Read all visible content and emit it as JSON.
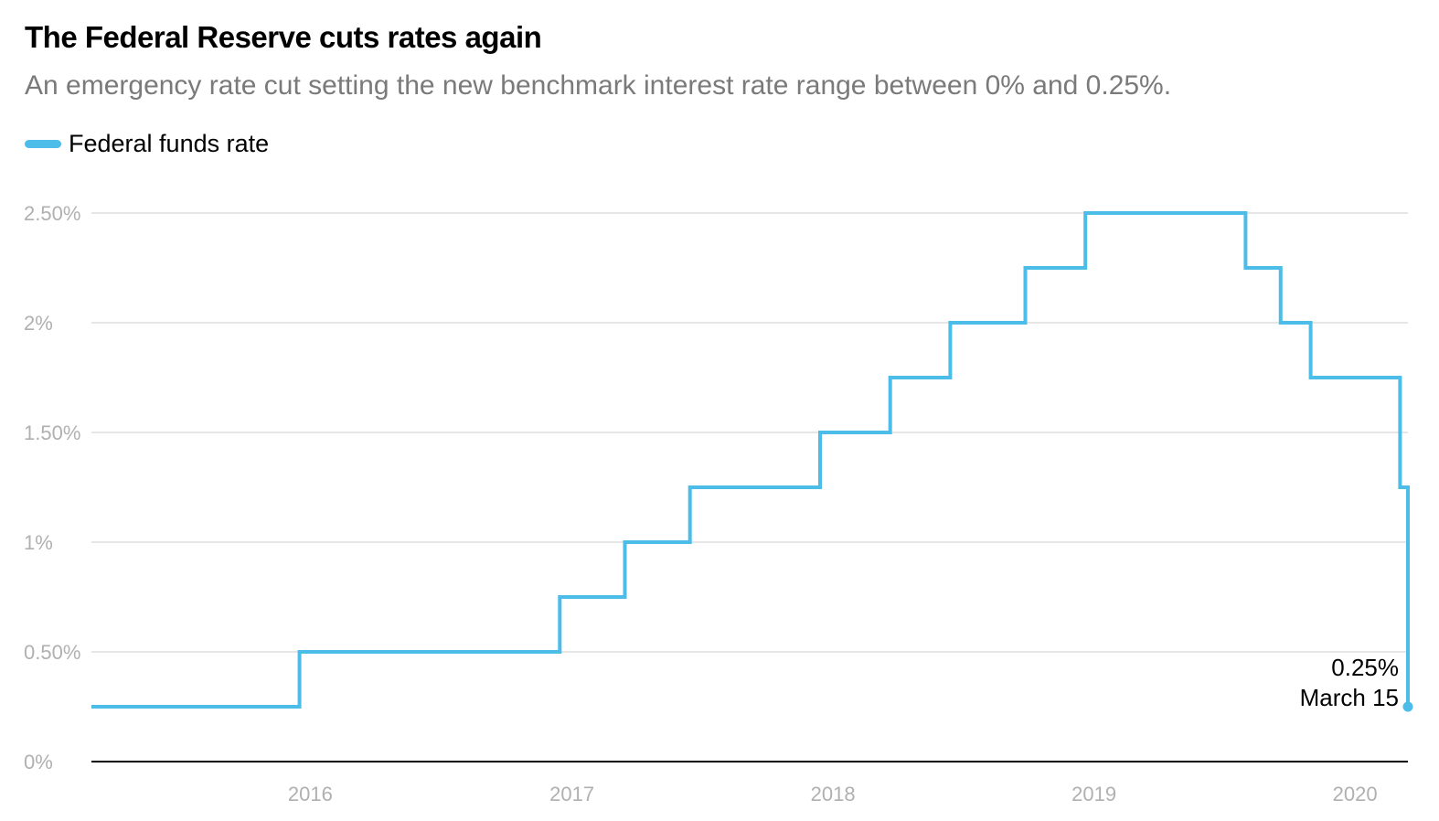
{
  "header": {
    "title": "The Federal Reserve cuts rates again",
    "subtitle": "An emergency rate cut setting the new benchmark interest rate range between 0% and 0.25%."
  },
  "colors": {
    "series": "#4bbde8",
    "grid": "#dddddd",
    "axis": "#000000",
    "tick_text": "#b0b0b0"
  },
  "chart_data": {
    "type": "line",
    "title": "The Federal Reserve cuts rates again",
    "subtitle": "An emergency rate cut setting the new benchmark interest rate range between 0% and 0.25%.",
    "step": true,
    "xlim": [
      "2015-03-01",
      "2020-03-15"
    ],
    "ylim": [
      0,
      2.5
    ],
    "yticks": [
      0,
      0.5,
      1,
      1.5,
      2,
      2.5
    ],
    "ytick_labels": [
      "0%",
      "0.50%",
      "1%",
      "1.50%",
      "2%",
      "2.50%"
    ],
    "xticks": [
      "2016-01-01",
      "2017-01-01",
      "2018-01-01",
      "2019-01-01",
      "2020-01-01"
    ],
    "xtick_labels": [
      "2016",
      "2017",
      "2018",
      "2019",
      "2020"
    ],
    "grid": true,
    "legend": "top-left",
    "series": [
      {
        "name": "Federal funds rate",
        "x": [
          "2015-03-01",
          "2015-12-17",
          "2016-12-15",
          "2017-03-16",
          "2017-06-15",
          "2017-12-14",
          "2018-03-22",
          "2018-06-14",
          "2018-09-27",
          "2018-12-20",
          "2019-08-01",
          "2019-09-19",
          "2019-10-31",
          "2020-03-04",
          "2020-03-15"
        ],
        "y": [
          0.25,
          0.5,
          0.75,
          1.0,
          1.25,
          1.5,
          1.75,
          2.0,
          2.25,
          2.5,
          2.25,
          2.0,
          1.75,
          1.25,
          0.25
        ]
      }
    ],
    "annotation": {
      "value_label": "0.25%",
      "date_label": "March 15",
      "x": "2020-03-15",
      "y": 0.25
    }
  }
}
